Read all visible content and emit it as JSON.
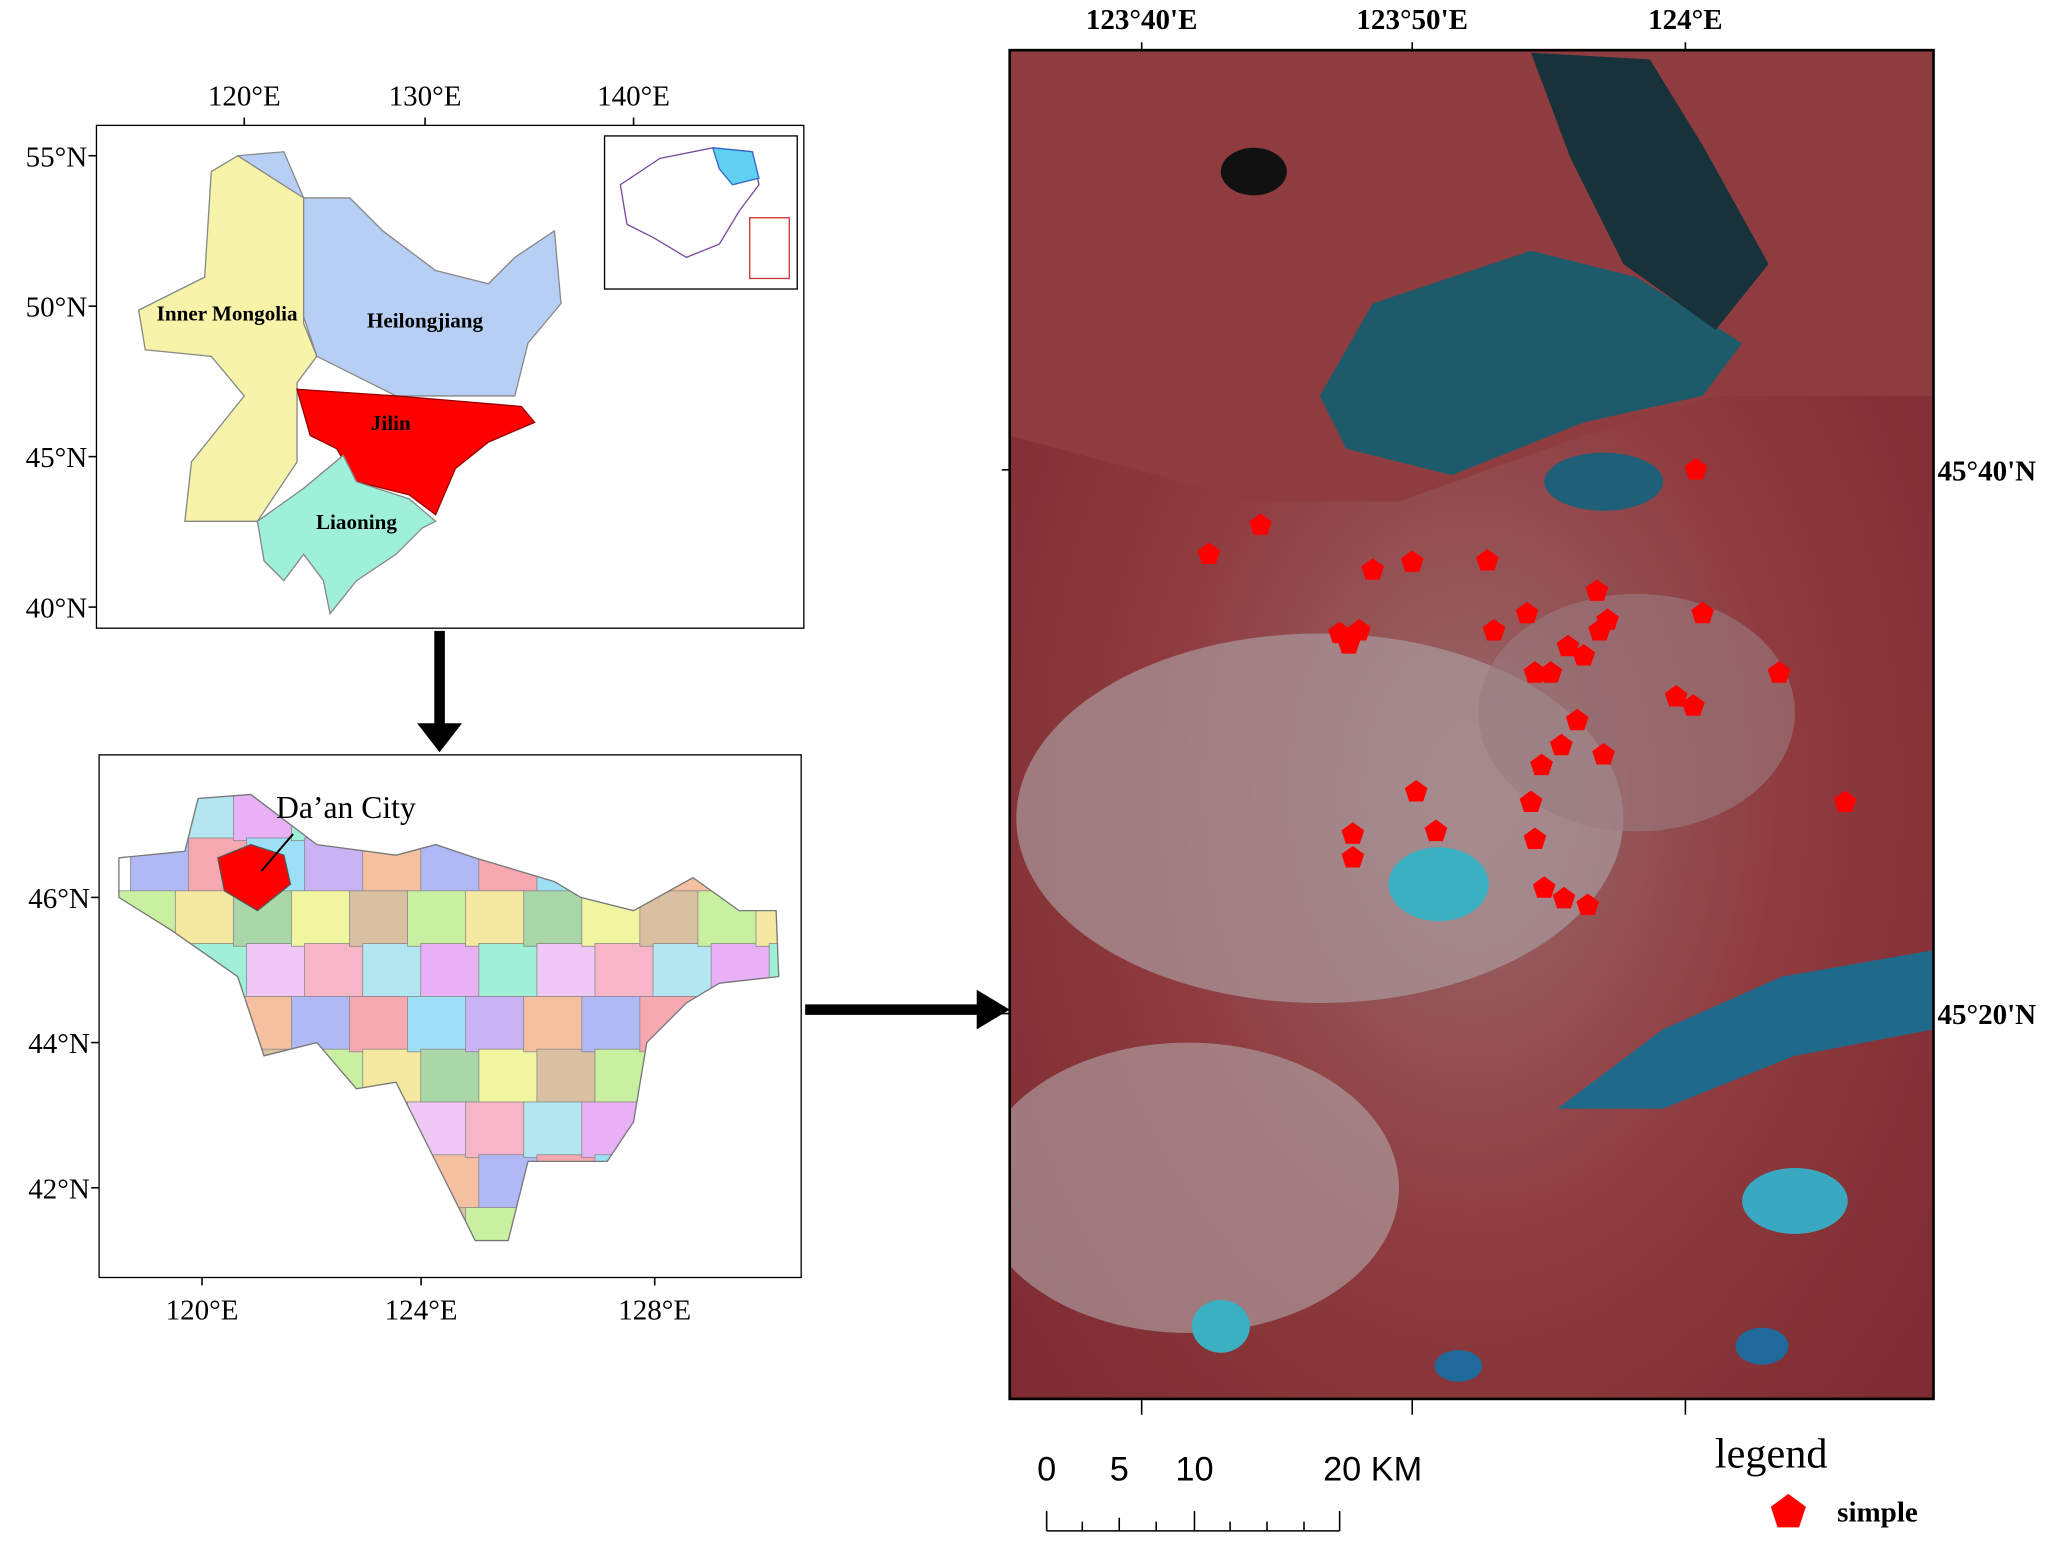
{
  "panel1": {
    "lon_labels": [
      "120°E",
      "130°E",
      "140°E"
    ],
    "lat_labels": [
      "55°N",
      "50°N",
      "45°N",
      "40°N"
    ],
    "regions": [
      "Inner Mongolia",
      "Heilongjiang",
      "Jilin",
      "Liaoning"
    ]
  },
  "panel2": {
    "lon_labels": [
      "120°E",
      "124°E",
      "128°E"
    ],
    "lat_labels": [
      "46°N",
      "44°N",
      "42°N"
    ],
    "callout": "Da’an City"
  },
  "panel3": {
    "lon_labels": [
      "123°40'E",
      "123°50'E",
      "124°E"
    ],
    "lat_labels": [
      "45°40'N",
      "45°20'N"
    ],
    "scale_labels": [
      "0",
      "5",
      "10",
      "20 KM"
    ],
    "legend_title": "legend",
    "legend_item": "simple"
  }
}
